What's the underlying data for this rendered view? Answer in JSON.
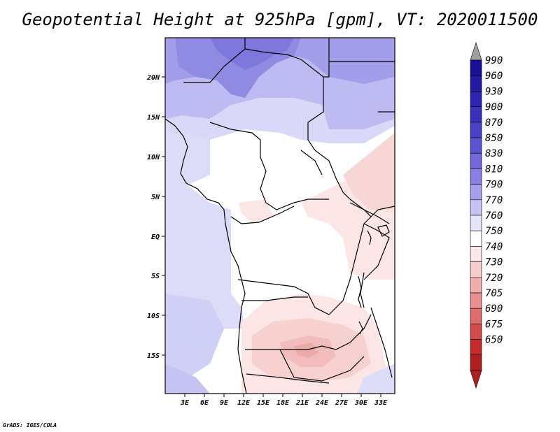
{
  "title": "Geopotential Height at 925hPa [gpm], VT: 2020011500",
  "credit": "GrADS: IGES/COLA",
  "lat_labels": [
    "20N",
    "15N",
    "10N",
    "5N",
    "EQ",
    "5S",
    "10S",
    "15S"
  ],
  "lon_labels": [
    "3E",
    "6E",
    "9E",
    "12E",
    "15E",
    "18E",
    "21E",
    "24E",
    "27E",
    "30E",
    "33E"
  ],
  "colorbar": {
    "labels": [
      "990",
      "960",
      "930",
      "900",
      "870",
      "850",
      "830",
      "810",
      "790",
      "770",
      "760",
      "750",
      "740",
      "730",
      "720",
      "705",
      "690",
      "675",
      "650"
    ],
    "colors": [
      "#1a0f99",
      "#2419a6",
      "#2f23b3",
      "#3b30be",
      "#4a40c9",
      "#5b53d3",
      "#7068dc",
      "#8680e6",
      "#a5a0ee",
      "#c6c3f4",
      "#e6e4fa",
      "#ffffff",
      "#fce8e8",
      "#f8cccc",
      "#f2adad",
      "#eb8e8e",
      "#e06b6b",
      "#d44a4a",
      "#c52b2b",
      "#b01e1e"
    ],
    "top_arrow_color": "#a0a0a0",
    "bottom_arrow_color": "#b01e1e"
  }
}
